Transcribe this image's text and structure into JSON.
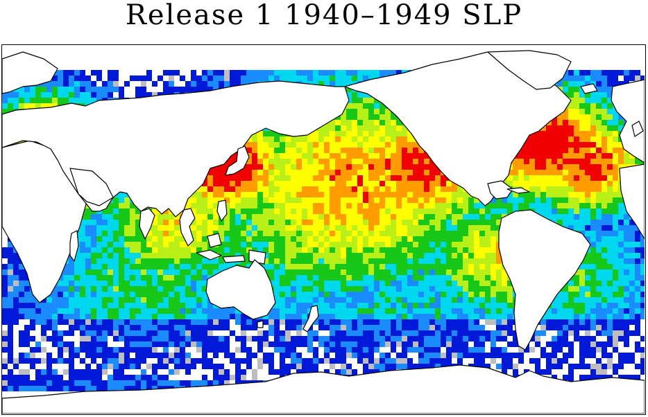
{
  "title": "Release 1 1940–1949 SLP",
  "palette": {
    "none": "#ffffff",
    "sparse_grey": "#bebebe",
    "dark_blue": "#0018d8",
    "light_blue": "#1a8cff",
    "cyan": "#00d8f0",
    "green": "#18c818",
    "yellow_green": "#b8f018",
    "yellow": "#ffff00",
    "orange": "#ff9c00",
    "red": "#f00000",
    "coast": "#000000"
  }
}
